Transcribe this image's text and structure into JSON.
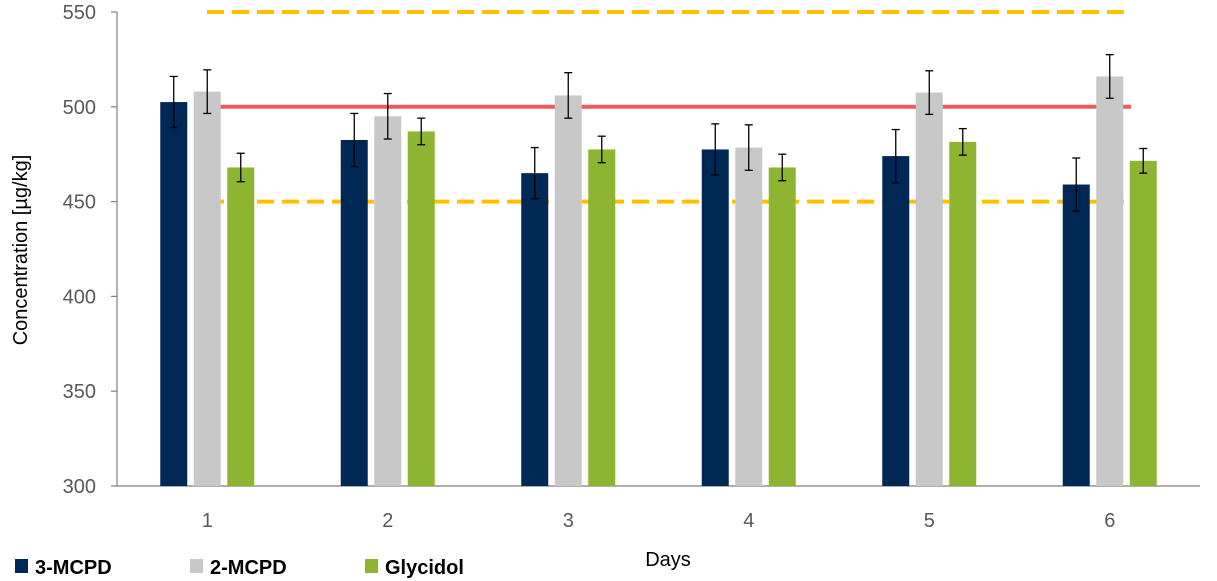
{
  "chart_data": {
    "type": "bar",
    "categories": [
      "1",
      "2",
      "3",
      "4",
      "5",
      "6"
    ],
    "xlabel": "Days",
    "ylabel": "Concentration [µg/kg]",
    "ylim": [
      300,
      550
    ],
    "yticks": [
      300,
      350,
      400,
      450,
      500,
      550
    ],
    "grid": false,
    "legend_position": "bottom-left",
    "series": [
      {
        "name": "3-MCPD",
        "color": "#002855",
        "values": [
          502.5,
          482.5,
          465,
          477.5,
          474,
          459
        ],
        "errors": [
          13.5,
          14,
          13.5,
          13.5,
          14,
          14
        ]
      },
      {
        "name": "2-MCPD",
        "color": "#C8C8C8",
        "values": [
          508,
          495,
          506,
          478.5,
          507.5,
          516
        ],
        "errors": [
          11.5,
          12,
          12,
          12,
          11.5,
          11.5
        ]
      },
      {
        "name": "Glycidol",
        "color": "#8DB531",
        "values": [
          468,
          487,
          477.5,
          468,
          481.5,
          471.5
        ],
        "errors": [
          7.5,
          7,
          7,
          7,
          7,
          6.5
        ]
      }
    ],
    "reference_lines": [
      {
        "value": 500,
        "style": "solid",
        "color": "#EE5A5A"
      },
      {
        "value": 550,
        "style": "dashed",
        "color": "#FFC000"
      },
      {
        "value": 450,
        "style": "dashed",
        "color": "#FFC000"
      }
    ]
  }
}
